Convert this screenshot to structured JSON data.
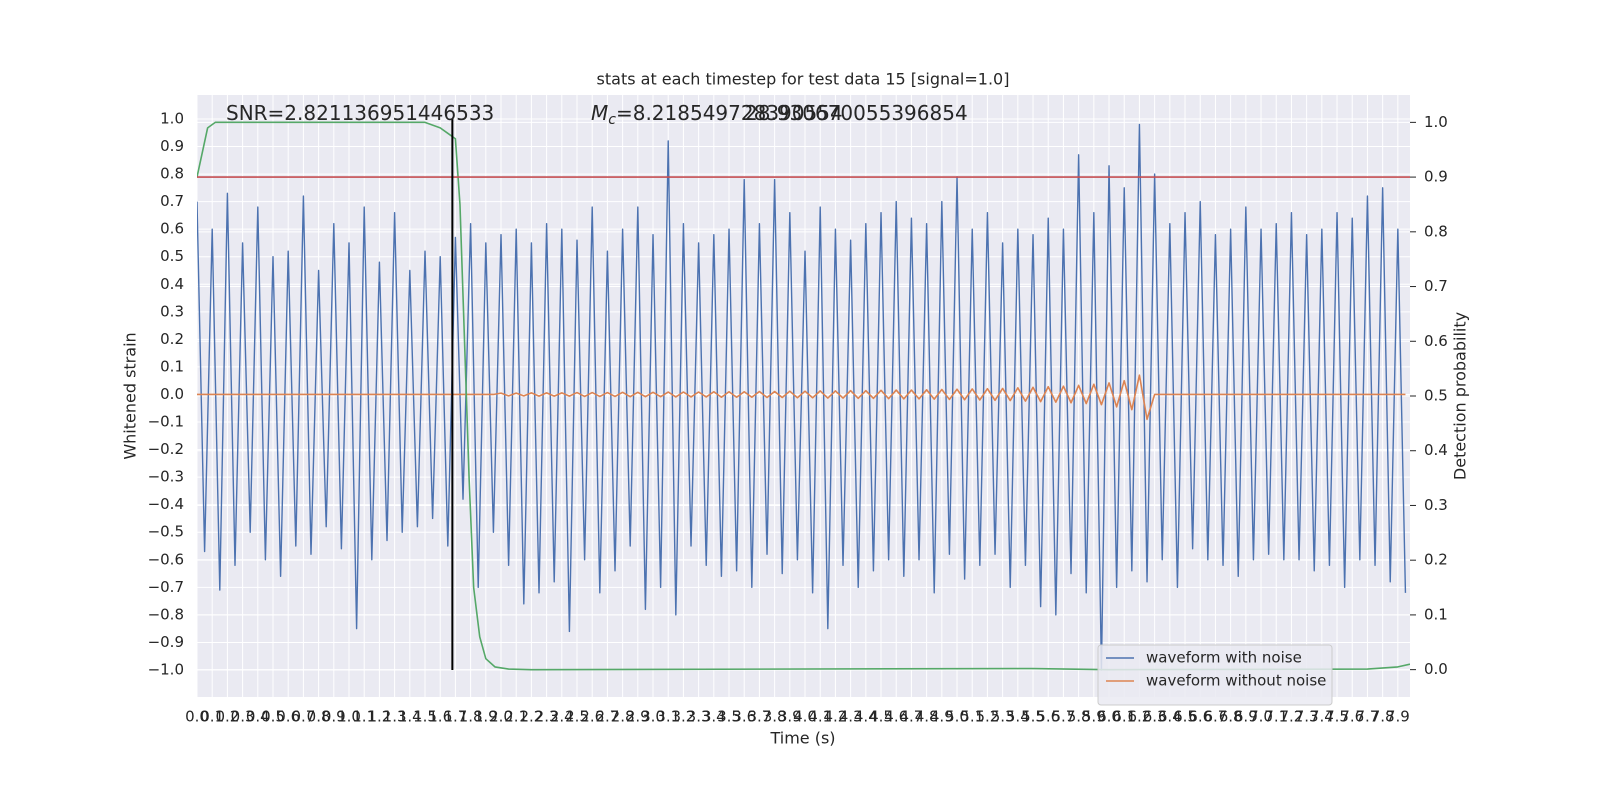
{
  "chart_data": {
    "type": "line",
    "title": "stats at each timestep for test data 15 [signal=1.0]",
    "xlabel": "Time (s)",
    "ylabel": "Whitened strain",
    "y2label": "Detection probability",
    "grid": true,
    "legend": "lower right",
    "xlim": [
      0,
      7.98
    ],
    "ylim": [
      -1.098,
      1.087
    ],
    "y2lim": [
      -0.05,
      1.05
    ],
    "xticks": [
      {
        "value": 0,
        "label": "0.0"
      },
      0.1,
      0.2,
      0.3,
      0.4,
      0.5,
      0.6,
      0.7,
      0.8,
      0.9,
      {
        "value": 1,
        "label": "1.0"
      },
      1.1,
      1.2,
      1.3,
      1.4,
      1.5,
      1.6,
      1.7,
      1.8,
      1.9,
      {
        "value": 2,
        "label": "2.0"
      },
      2.1,
      2.2,
      2.3,
      2.4,
      2.5,
      2.6,
      2.7,
      2.8,
      2.9,
      {
        "value": 3,
        "label": "3.0"
      },
      3.1,
      3.2,
      3.3,
      3.4,
      3.5,
      3.6,
      3.7,
      3.8,
      3.9,
      {
        "value": 4,
        "label": "4.0"
      },
      4.1,
      4.2,
      4.3,
      4.4,
      4.5,
      4.6,
      4.7,
      4.8,
      4.9,
      {
        "value": 5,
        "label": "5.0"
      },
      5.1,
      5.2,
      5.3,
      5.4,
      5.5,
      5.6,
      5.7,
      5.8,
      5.9,
      {
        "value": 6,
        "label": "6.0"
      },
      6.1,
      6.2,
      6.3,
      6.4,
      6.5,
      6.6,
      6.7,
      6.8,
      6.9,
      {
        "value": 7,
        "label": "7.0"
      },
      7.1,
      7.2,
      7.3,
      7.4,
      7.5,
      7.6,
      7.7,
      7.8,
      7.9
    ],
    "yticks": [
      {
        "value": -1,
        "label": "−1.0"
      },
      {
        "value": -0.9,
        "label": "−0.9"
      },
      {
        "value": -0.8,
        "label": "−0.8"
      },
      {
        "value": -0.7,
        "label": "−0.7"
      },
      {
        "value": -0.6,
        "label": "−0.6"
      },
      {
        "value": -0.5,
        "label": "−0.5"
      },
      {
        "value": -0.4,
        "label": "−0.4"
      },
      {
        "value": -0.3,
        "label": "−0.3"
      },
      {
        "value": -0.2,
        "label": "−0.2"
      },
      {
        "value": -0.1,
        "label": "−0.1"
      },
      {
        "value": 0,
        "label": "0.0"
      },
      0.1,
      0.2,
      0.3,
      0.4,
      0.5,
      0.6,
      0.7,
      0.8,
      0.9,
      {
        "value": 1,
        "label": "1.0"
      }
    ],
    "y2ticks": [
      {
        "value": 0,
        "label": "0.0"
      },
      0.1,
      0.2,
      0.3,
      0.4,
      0.5,
      0.6,
      0.7,
      0.8,
      0.9,
      {
        "value": 1,
        "label": "1.0"
      }
    ],
    "x": [
      0,
      0.05,
      0.1,
      0.15,
      0.2,
      0.25,
      0.3,
      0.35,
      0.4,
      0.45,
      0.5,
      0.55,
      0.6,
      0.65,
      0.7,
      0.75,
      0.8,
      0.85,
      0.9,
      0.95,
      1,
      1.05,
      1.1,
      1.15,
      1.2,
      1.25,
      1.3,
      1.35,
      1.4,
      1.45,
      1.5,
      1.55,
      1.6,
      1.65,
      1.7,
      1.75,
      1.8,
      1.85,
      1.9,
      1.95,
      2,
      2.05,
      2.1,
      2.15,
      2.2,
      2.25,
      2.3,
      2.35,
      2.4,
      2.45,
      2.5,
      2.55,
      2.6,
      2.65,
      2.7,
      2.75,
      2.8,
      2.85,
      2.9,
      2.95,
      3,
      3.05,
      3.1,
      3.15,
      3.2,
      3.25,
      3.3,
      3.35,
      3.4,
      3.45,
      3.5,
      3.55,
      3.6,
      3.65,
      3.7,
      3.75,
      3.8,
      3.85,
      3.9,
      3.95,
      4,
      4.05,
      4.1,
      4.15,
      4.2,
      4.25,
      4.3,
      4.35,
      4.4,
      4.45,
      4.5,
      4.55,
      4.6,
      4.65,
      4.7,
      4.75,
      4.8,
      4.85,
      4.9,
      4.95,
      5,
      5.05,
      5.1,
      5.15,
      5.2,
      5.25,
      5.3,
      5.35,
      5.4,
      5.45,
      5.5,
      5.55,
      5.6,
      5.65,
      5.7,
      5.75,
      5.8,
      5.85,
      5.9,
      5.95,
      6,
      6.05,
      6.1,
      6.15,
      6.2,
      6.25,
      6.3,
      6.35,
      6.4,
      6.45,
      6.5,
      6.55,
      6.6,
      6.65,
      6.7,
      6.75,
      6.8,
      6.85,
      6.9,
      6.95,
      7,
      7.05,
      7.1,
      7.15,
      7.2,
      7.25,
      7.3,
      7.35,
      7.4,
      7.45,
      7.5,
      7.55,
      7.6,
      7.65,
      7.7,
      7.75,
      7.8,
      7.85,
      7.9,
      7.95
    ],
    "series": [
      {
        "name": "waveform with noise",
        "color": "#4c72b0",
        "values": [
          0.7,
          -0.57,
          0.6,
          -0.71,
          0.73,
          -0.62,
          0.55,
          -0.5,
          0.68,
          -0.6,
          0.5,
          -0.66,
          0.52,
          -0.55,
          0.72,
          -0.58,
          0.45,
          -0.48,
          0.62,
          -0.56,
          0.55,
          -0.85,
          0.68,
          -0.6,
          0.48,
          -0.53,
          0.66,
          -0.5,
          0.45,
          -0.48,
          0.52,
          -0.45,
          0.5,
          -0.55,
          0.57,
          -0.38,
          0.62,
          -0.7,
          0.55,
          -0.5,
          0.58,
          -0.62,
          0.6,
          -0.76,
          0.55,
          -0.72,
          0.62,
          -0.68,
          0.6,
          -0.86,
          0.56,
          -0.6,
          0.68,
          -0.72,
          0.52,
          -0.64,
          0.6,
          -0.55,
          0.68,
          -0.78,
          0.58,
          -0.7,
          0.92,
          -0.8,
          0.62,
          -0.55,
          0.55,
          -0.62,
          0.58,
          -0.66,
          0.6,
          -0.64,
          0.78,
          -0.7,
          0.62,
          -0.58,
          0.78,
          -0.65,
          0.66,
          -0.6,
          0.52,
          -0.72,
          0.68,
          -0.85,
          0.6,
          -0.62,
          0.56,
          -0.7,
          0.62,
          -0.64,
          0.66,
          -0.6,
          0.7,
          -0.66,
          0.64,
          -0.6,
          0.62,
          -0.72,
          0.7,
          -0.58,
          0.79,
          -0.67,
          0.6,
          -0.62,
          0.66,
          -0.58,
          0.55,
          -0.7,
          0.6,
          -0.62,
          0.58,
          -0.77,
          0.64,
          -0.8,
          0.6,
          -0.65,
          0.87,
          -0.72,
          0.66,
          -1.0,
          0.83,
          -0.7,
          0.75,
          -0.64,
          0.98,
          -0.68,
          0.8,
          -0.6,
          0.62,
          -0.7,
          0.66,
          -0.56,
          0.7,
          -0.6,
          0.58,
          -0.62,
          0.6,
          -0.66,
          0.68,
          -0.6,
          0.6,
          -0.58,
          0.62,
          -0.6,
          0.66,
          -0.6,
          0.58,
          -0.64,
          0.6,
          -0.62,
          0.66,
          -0.7,
          0.64,
          -0.6,
          0.72,
          -0.62,
          0.75,
          -0.68,
          0.6,
          -0.72
        ]
      },
      {
        "name": "waveform without noise",
        "color": "#dd8452",
        "values": [
          0,
          0,
          0,
          0,
          0,
          0,
          0,
          0,
          0,
          0,
          0,
          0,
          0,
          0,
          0,
          0,
          0,
          0,
          0,
          0,
          0,
          0,
          0,
          0,
          0,
          0,
          0,
          0,
          0,
          0,
          0,
          0,
          0,
          0,
          0,
          0,
          0,
          0,
          0,
          0,
          0.005,
          -0.005,
          0.005,
          -0.005,
          0.006,
          -0.006,
          0.006,
          -0.006,
          0.006,
          -0.006,
          0.007,
          -0.007,
          0.007,
          -0.007,
          0.007,
          -0.007,
          0.008,
          -0.008,
          0.008,
          -0.008,
          0.008,
          -0.008,
          0.009,
          -0.009,
          0.009,
          -0.009,
          0.009,
          -0.009,
          0.01,
          -0.01,
          0.01,
          -0.01,
          0.01,
          -0.01,
          0.011,
          -0.011,
          0.011,
          -0.011,
          0.012,
          -0.012,
          0.012,
          -0.012,
          0.013,
          -0.013,
          0.013,
          -0.013,
          0.014,
          -0.014,
          0.014,
          -0.014,
          0.015,
          -0.015,
          0.016,
          -0.016,
          0.016,
          -0.016,
          0.017,
          -0.017,
          0.018,
          -0.018,
          0.019,
          -0.019,
          0.02,
          -0.02,
          0.021,
          -0.021,
          0.022,
          -0.022,
          0.024,
          -0.024,
          0.026,
          -0.026,
          0.028,
          -0.028,
          0.03,
          -0.03,
          0.033,
          -0.033,
          0.037,
          -0.037,
          0.042,
          -0.045,
          0.05,
          -0.055,
          0.07,
          -0.09,
          0,
          0,
          0,
          0,
          0,
          0,
          0,
          0,
          0,
          0,
          0,
          0,
          0,
          0,
          0,
          0,
          0,
          0,
          0,
          0,
          0,
          0,
          0,
          0,
          0,
          0,
          0,
          0,
          0,
          0,
          0,
          0,
          0,
          0
        ]
      },
      {
        "color": "#55a868",
        "axis": "y2",
        "x": [
          0,
          0.07,
          0.12,
          1.5,
          1.6,
          1.65,
          1.7,
          1.73,
          1.76,
          1.79,
          1.82,
          1.86,
          1.9,
          1.96,
          2.05,
          2.2,
          5.5,
          6.0,
          7.7,
          7.9,
          7.98
        ],
        "values": [
          0.9,
          0.99,
          1.0,
          1.0,
          0.99,
          0.98,
          0.97,
          0.85,
          0.6,
          0.35,
          0.15,
          0.06,
          0.02,
          0.005,
          0.001,
          0,
          0.002,
          0,
          0.001,
          0.005,
          0.01
        ]
      }
    ],
    "hlines": [
      {
        "value": 0.9,
        "axis": "y2",
        "color": "#c44e52"
      }
    ],
    "vlines": [
      {
        "x": 1.68,
        "ymin": -1.0,
        "ymax": 1.0,
        "color": "#000000"
      }
    ],
    "annotations": [
      {
        "text": "SNR=2.821136951446533"
      },
      {
        "symbol": "M",
        "subscript": "c",
        "text": "=8.218549728390554"
      },
      {
        "text": "28.930670055396854"
      }
    ]
  }
}
